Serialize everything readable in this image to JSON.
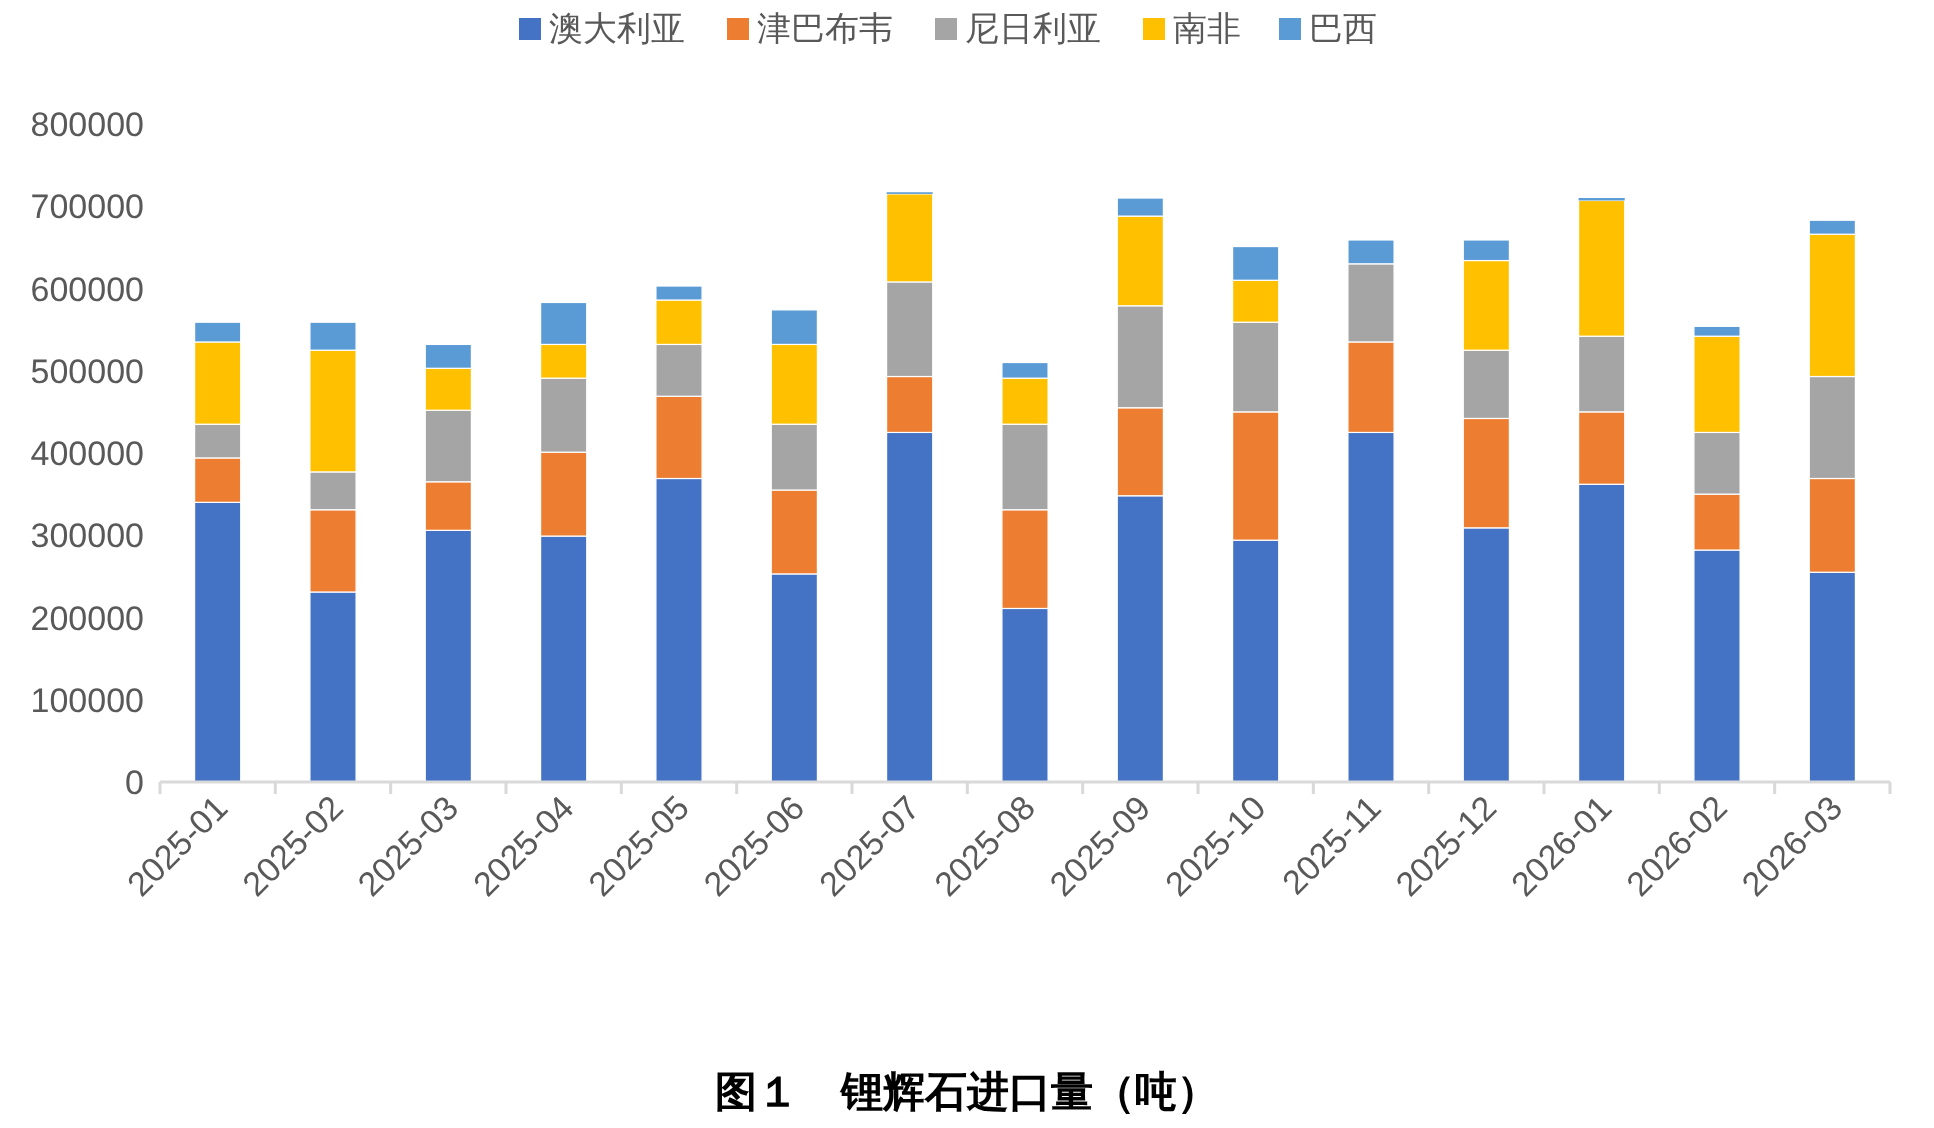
{
  "chart_data": {
    "type": "bar",
    "stacked": true,
    "title": "图１　锂辉石进口量（吨）",
    "categories": [
      "2025-01",
      "2025-02",
      "2025-03",
      "2025-04",
      "2025-05",
      "2025-06",
      "2025-07",
      "2025-08",
      "2025-09",
      "2025-10",
      "2025-11",
      "2025-12",
      "2026-01",
      "2026-02",
      "2026-03"
    ],
    "series": [
      {
        "name": "澳大利亚",
        "color": "#4472c4",
        "values": [
          340000,
          231000,
          306000,
          299000,
          369000,
          253000,
          425000,
          211000,
          348000,
          294000,
          425000,
          309000,
          362000,
          282000,
          255000
        ]
      },
      {
        "name": "津巴布韦",
        "color": "#ed7d31",
        "values": [
          54000,
          100000,
          59000,
          102000,
          100000,
          102000,
          68000,
          120000,
          107000,
          156000,
          110000,
          133000,
          88000,
          68000,
          114000
        ]
      },
      {
        "name": "尼日利亚",
        "color": "#a5a5a5",
        "values": [
          41000,
          46000,
          87000,
          90000,
          63000,
          80000,
          115000,
          104000,
          124000,
          109000,
          95000,
          83000,
          92000,
          75000,
          124000
        ]
      },
      {
        "name": "南非",
        "color": "#ffc000",
        "values": [
          100000,
          148000,
          51000,
          41000,
          54000,
          97000,
          107000,
          56000,
          109000,
          51000,
          0,
          109000,
          165000,
          117000,
          173000
        ]
      },
      {
        "name": "巴西",
        "color": "#5b9bd5",
        "values": [
          24000,
          34000,
          29000,
          51000,
          17000,
          42000,
          2000,
          19000,
          22000,
          41000,
          29000,
          25000,
          3000,
          12000,
          17000
        ]
      }
    ],
    "ylim": [
      0,
      800000
    ],
    "yticks": [
      0,
      100000,
      200000,
      300000,
      400000,
      500000,
      600000,
      700000,
      800000
    ],
    "grid": false,
    "legend": "top"
  }
}
